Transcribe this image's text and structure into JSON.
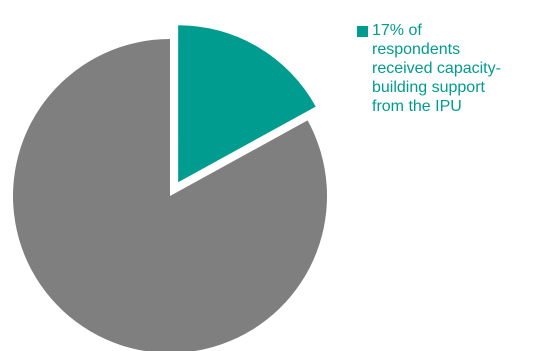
{
  "chart_data": {
    "type": "pie",
    "slices": [
      {
        "name": "17% of respondents received capacity-building support from the IPU",
        "value": 17,
        "color": "#009C8F",
        "exploded": true,
        "in_legend": true
      },
      {
        "name": "",
        "value": 83,
        "color": "#7F7F7F",
        "exploded": false,
        "in_legend": false
      }
    ],
    "start": "12 o'clock",
    "direction": "clockwise",
    "legend_position": "top-right",
    "legend": [
      {
        "label": "17% of respondents received capacity-building support from the IPU",
        "color": "#009C8F"
      }
    ],
    "colors": {
      "legend_text": "#009C8F"
    }
  }
}
